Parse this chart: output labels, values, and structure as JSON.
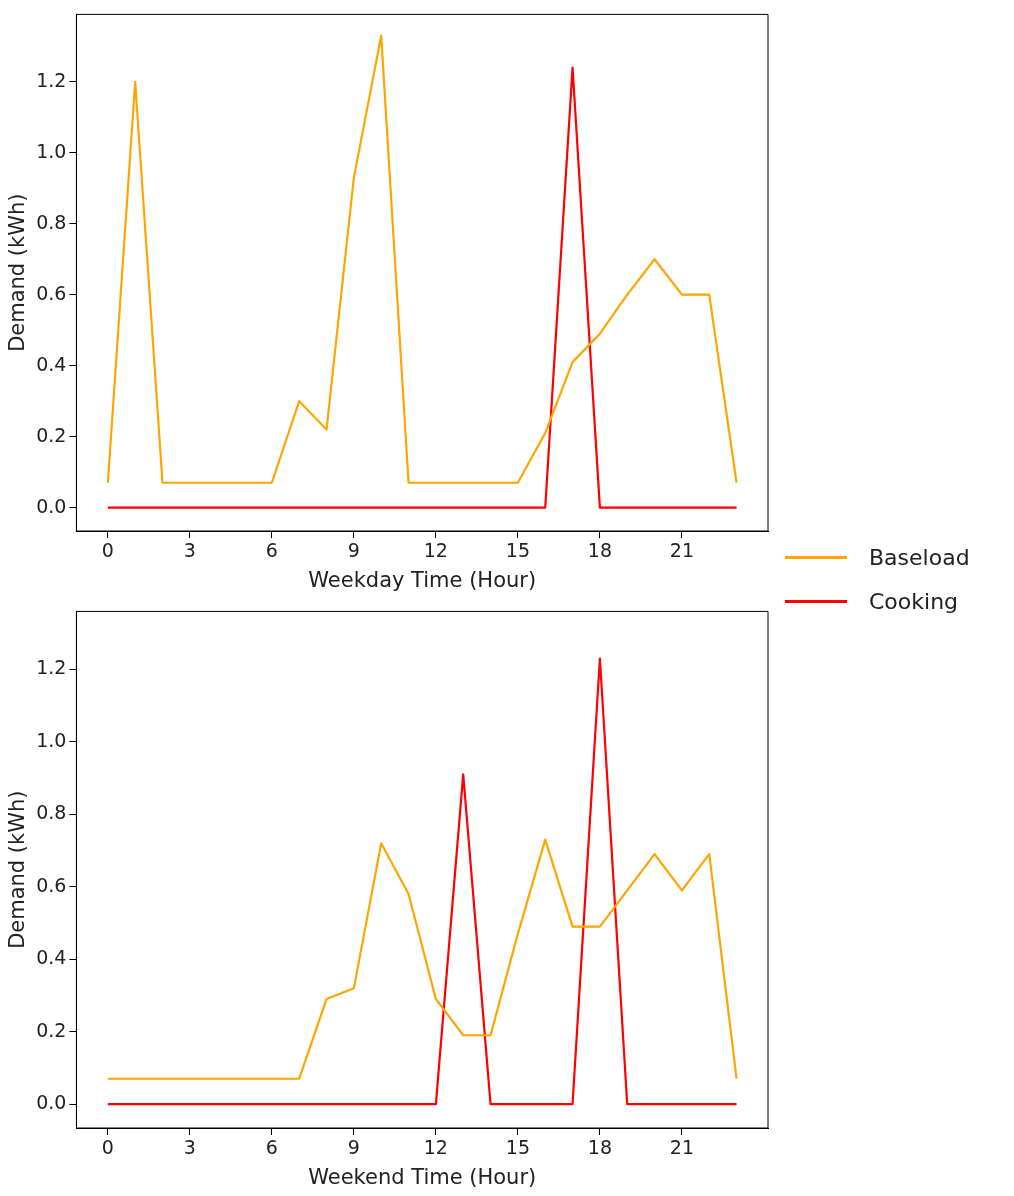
{
  "chart_data": [
    {
      "type": "line",
      "xlabel": "Weekday Time (Hour)",
      "ylabel": "Demand (kWh)",
      "x": [
        0,
        1,
        2,
        3,
        4,
        5,
        6,
        7,
        8,
        9,
        10,
        11,
        12,
        13,
        14,
        15,
        16,
        17,
        18,
        19,
        20,
        21,
        22,
        23
      ],
      "xlim": [
        -1.15,
        24.15
      ],
      "xticks": [
        0,
        3,
        6,
        9,
        12,
        15,
        18,
        21
      ],
      "ylim": [
        -0.066,
        1.39
      ],
      "yticks": [
        {
          "value": 0,
          "label": "0.0"
        },
        {
          "value": 0.2,
          "label": "0.2"
        },
        {
          "value": 0.4,
          "label": "0.4"
        },
        {
          "value": 0.6,
          "label": "0.6"
        },
        {
          "value": 0.8,
          "label": "0.8"
        },
        {
          "value": 1,
          "label": "1.0"
        },
        {
          "value": 1.2,
          "label": "1.2"
        }
      ],
      "grid": false,
      "legend": "right",
      "series": [
        {
          "name": "Baseload",
          "color": "#ffa500",
          "values": [
            0.07,
            1.2,
            0.07,
            0.07,
            0.07,
            0.07,
            0.07,
            0.3,
            0.22,
            0.93,
            1.33,
            0.07,
            0.07,
            0.07,
            0.07,
            0.07,
            0.21,
            0.41,
            0.49,
            0.6,
            0.7,
            0.6,
            0.6,
            0.07
          ]
        },
        {
          "name": "Cooking",
          "color": "#ff0000",
          "values": [
            0,
            0,
            0,
            0,
            0,
            0,
            0,
            0,
            0,
            0,
            0,
            0,
            0,
            0,
            0,
            0,
            0,
            1.24,
            0,
            0,
            0,
            0,
            0,
            0
          ]
        }
      ]
    },
    {
      "type": "line",
      "xlabel": "Weekend Time (Hour)",
      "ylabel": "Demand (kWh)",
      "x": [
        0,
        1,
        2,
        3,
        4,
        5,
        6,
        7,
        8,
        9,
        10,
        11,
        12,
        13,
        14,
        15,
        16,
        17,
        18,
        19,
        20,
        21,
        22,
        23
      ],
      "xlim": [
        -1.15,
        24.15
      ],
      "xticks": [
        0,
        3,
        6,
        9,
        12,
        15,
        18,
        21
      ],
      "ylim": [
        -0.066,
        1.36
      ],
      "yticks": [
        {
          "value": 0,
          "label": "0.0"
        },
        {
          "value": 0.2,
          "label": "0.2"
        },
        {
          "value": 0.4,
          "label": "0.4"
        },
        {
          "value": 0.6,
          "label": "0.6"
        },
        {
          "value": 0.8,
          "label": "0.8"
        },
        {
          "value": 1,
          "label": "1.0"
        },
        {
          "value": 1.2,
          "label": "1.2"
        }
      ],
      "grid": false,
      "series": [
        {
          "color": "#ffa500",
          "values": [
            0.07,
            0.07,
            0.07,
            0.07,
            0.07,
            0.07,
            0.07,
            0.07,
            0.29,
            0.32,
            0.72,
            0.58,
            0.29,
            0.19,
            0.19,
            0.47,
            0.73,
            0.49,
            0.49,
            0.59,
            0.69,
            0.59,
            0.69,
            0.07
          ]
        },
        {
          "color": "#ff0000",
          "values": [
            0,
            0,
            0,
            0,
            0,
            0,
            0,
            0,
            0,
            0,
            0,
            0,
            0,
            0.91,
            0,
            0,
            0,
            0,
            1.23,
            0,
            0,
            0,
            0,
            0
          ]
        }
      ]
    }
  ]
}
